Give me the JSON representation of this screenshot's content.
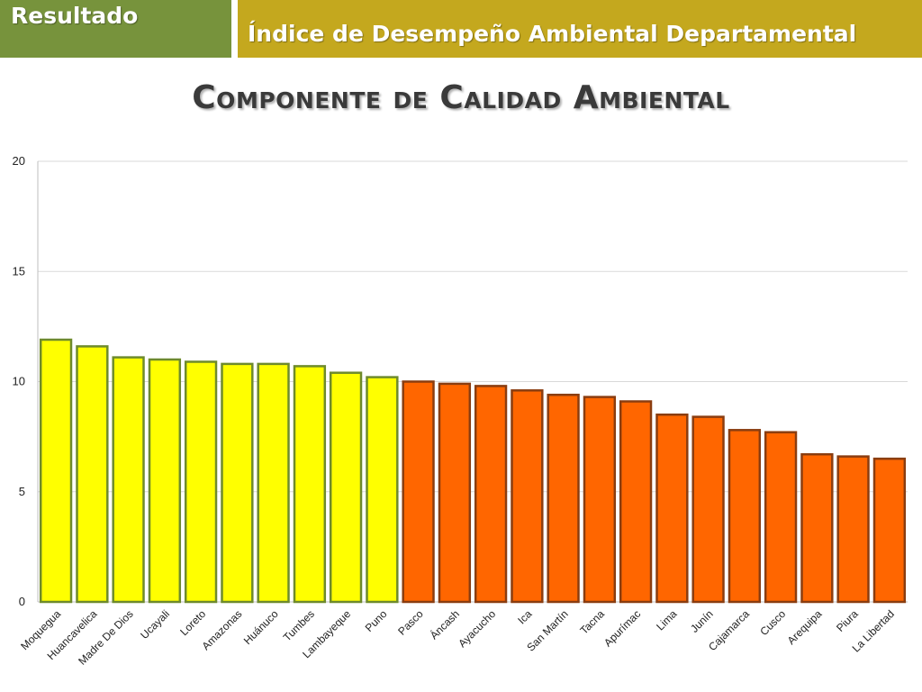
{
  "header": {
    "section_label": "Resultado",
    "title": "Índice de Desempeño Ambiental Departamental",
    "section_color": "#77933c",
    "title_color": "#c4a81e"
  },
  "chart_data": {
    "type": "bar",
    "title": "Componente de Calidad Ambiental",
    "xlabel": "",
    "ylabel": "",
    "ylim": [
      0,
      20
    ],
    "yticks": [
      0,
      5,
      10,
      15,
      20
    ],
    "grid": true,
    "legend": "none",
    "colors": {
      "high": "#ffff00",
      "high_border": "#6e8a2c",
      "low": "#ff6600",
      "low_border": "#8a3d10"
    },
    "categories": [
      "Moquegua",
      "Huancavelica",
      "Madre De Dios",
      "Ucayali",
      "Loreto",
      "Amazonas",
      "Huánuco",
      "Tumbes",
      "Lambayeque",
      "Puno",
      "Pasco",
      "Áncash",
      "Ayacucho",
      "Ica",
      "San Martín",
      "Tacna",
      "Apurímac",
      "Lima",
      "Junín",
      "Cajamarca",
      "Cusco",
      "Arequipa",
      "Piura",
      "La Libertad"
    ],
    "values": [
      11.9,
      11.6,
      11.1,
      11.0,
      10.9,
      10.8,
      10.8,
      10.7,
      10.4,
      10.2,
      10.0,
      9.9,
      9.8,
      9.6,
      9.4,
      9.3,
      9.1,
      8.5,
      8.4,
      7.8,
      7.7,
      6.7,
      6.6,
      6.5
    ],
    "groups": [
      "high",
      "high",
      "high",
      "high",
      "high",
      "high",
      "high",
      "high",
      "high",
      "high",
      "low",
      "low",
      "low",
      "low",
      "low",
      "low",
      "low",
      "low",
      "low",
      "low",
      "low",
      "low",
      "low",
      "low"
    ]
  }
}
